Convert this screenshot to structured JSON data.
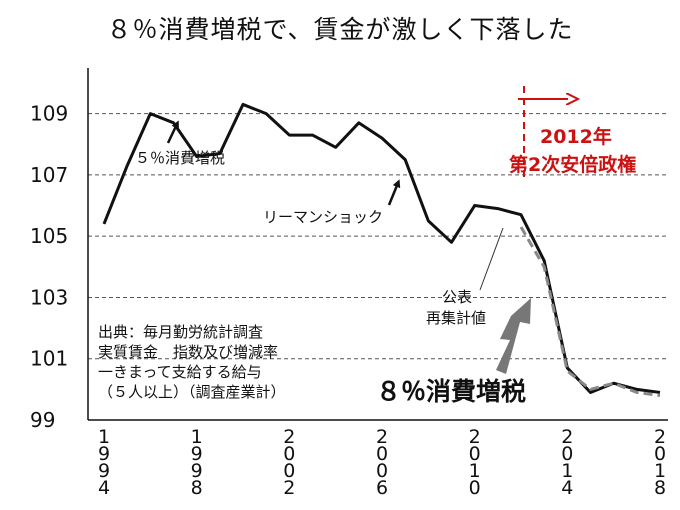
{
  "title": "８％消費増税で、賃金が激しく下落した",
  "source_lines": [
    "出典：毎月勤労統計調査",
    "実質賃金　指数及び増減率",
    "一きまって支給する給与",
    "（５人以上）（調査産業計）"
  ],
  "chart_data": {
    "type": "line",
    "title": "８％消費増税で、賃金が激しく下落した",
    "xlabel": "",
    "ylabel": "",
    "ylim": [
      99,
      110
    ],
    "xlim": [
      1994,
      2019
    ],
    "grid": true,
    "yticks": [
      99,
      101,
      103,
      105,
      107,
      109
    ],
    "ytick_labels": [
      "99",
      "101",
      "103",
      "105",
      "107",
      "109"
    ],
    "xticks": [
      1994,
      1998,
      2002,
      2006,
      2010,
      2014,
      2018
    ],
    "xtick_labels": [
      "1994",
      "1998",
      "2002",
      "2006",
      "2010",
      "2014",
      "2018"
    ],
    "series": [
      {
        "style": "solid",
        "color": "#111111",
        "x": [
          1994,
          1995,
          1996,
          1997,
          1998,
          1999,
          2000,
          2001,
          2002,
          2003,
          2004,
          2005,
          2006,
          2007,
          2008,
          2009,
          2010,
          2011,
          2012,
          2013,
          2014,
          2015,
          2016,
          2017,
          2018
        ],
        "values": [
          105.4,
          107.3,
          109.0,
          108.7,
          107.6,
          107.7,
          109.3,
          109.0,
          108.3,
          108.3,
          107.9,
          108.7,
          108.2,
          107.5,
          105.5,
          104.8,
          106.0,
          105.9,
          105.7,
          104.2,
          100.7,
          99.9,
          100.2,
          100.0,
          99.9
        ]
      },
      {
        "style": "dashed",
        "color": "#888888",
        "x": [
          2012,
          2013,
          2014,
          2015,
          2016,
          2017,
          2018
        ],
        "values": [
          105.3,
          104.0,
          100.6,
          100.0,
          100.2,
          99.9,
          99.8
        ]
      }
    ],
    "annotations": [
      {
        "text": "５％消費増税",
        "color": "#111111"
      },
      {
        "text": "リーマンショック",
        "color": "#111111"
      },
      {
        "text": "公表",
        "color": "#111111"
      },
      {
        "text": "再集計値",
        "color": "#111111"
      },
      {
        "text": "８％消費増税",
        "color": "#111111"
      },
      {
        "text": "2012年",
        "color": "#cc1111"
      },
      {
        "text": "第2次安倍政権",
        "color": "#cc1111"
      }
    ],
    "markers": {
      "abe_start_year": 2012.0,
      "arrow_color": "#777777",
      "highlight_color": "#cc1111"
    }
  }
}
